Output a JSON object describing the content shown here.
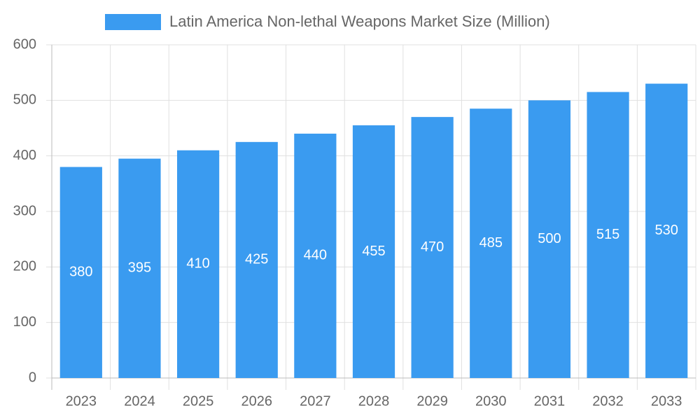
{
  "chart_data": {
    "type": "bar",
    "categories": [
      "2023",
      "2024",
      "2025",
      "2026",
      "2027",
      "2028",
      "2029",
      "2030",
      "2031",
      "2032",
      "2033"
    ],
    "series": [
      {
        "name": "Latin America Non-lethal Weapons Market Size (Million)",
        "color": "#3a9bf0",
        "values": [
          380,
          395,
          410,
          425,
          440,
          455,
          470,
          485,
          500,
          515,
          530
        ]
      }
    ],
    "ylim": [
      0,
      600
    ],
    "yticks": [
      0,
      100,
      200,
      300,
      400,
      500,
      600
    ],
    "grid": true,
    "legend": "top",
    "data_labels": true
  }
}
